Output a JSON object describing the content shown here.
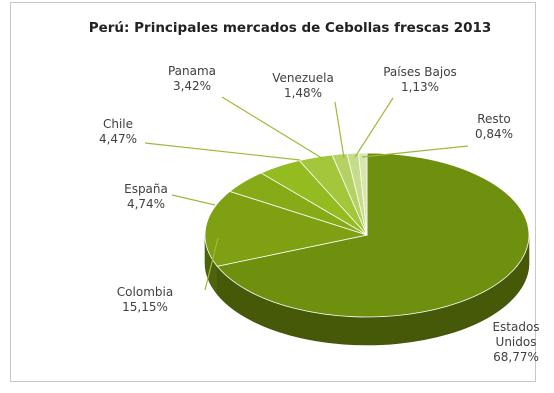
{
  "chart_data": {
    "type": "pie",
    "title": "Perú: Principales mercados de Cebollas frescas 2013",
    "slices": [
      {
        "label_lines": [
          "Estados",
          "Unidos"
        ],
        "value_label": "68,77%",
        "value": 68.77,
        "color": "#6f8f0e"
      },
      {
        "label_lines": [
          "Colombia"
        ],
        "value_label": "15,15%",
        "value": 15.15,
        "color": "#7ea012"
      },
      {
        "label_lines": [
          "España"
        ],
        "value_label": "4,74%",
        "value": 4.74,
        "color": "#86ab16"
      },
      {
        "label_lines": [
          "Chile"
        ],
        "value_label": "4,47%",
        "value": 4.47,
        "color": "#94bb1f"
      },
      {
        "label_lines": [
          "Panama"
        ],
        "value_label": "3,42%",
        "value": 3.42,
        "color": "#a3c63a"
      },
      {
        "label_lines": [
          "Venezuela"
        ],
        "value_label": "1,48%",
        "value": 1.48,
        "color": "#b5d163"
      },
      {
        "label_lines": [
          "Países Bajos"
        ],
        "value_label": "1,13%",
        "value": 1.13,
        "color": "#c6dc8a"
      },
      {
        "label_lines": [
          "Resto"
        ],
        "value_label": "0,84%",
        "value": 0.84,
        "color": "#d6e6ac"
      }
    ],
    "legend": "none"
  }
}
